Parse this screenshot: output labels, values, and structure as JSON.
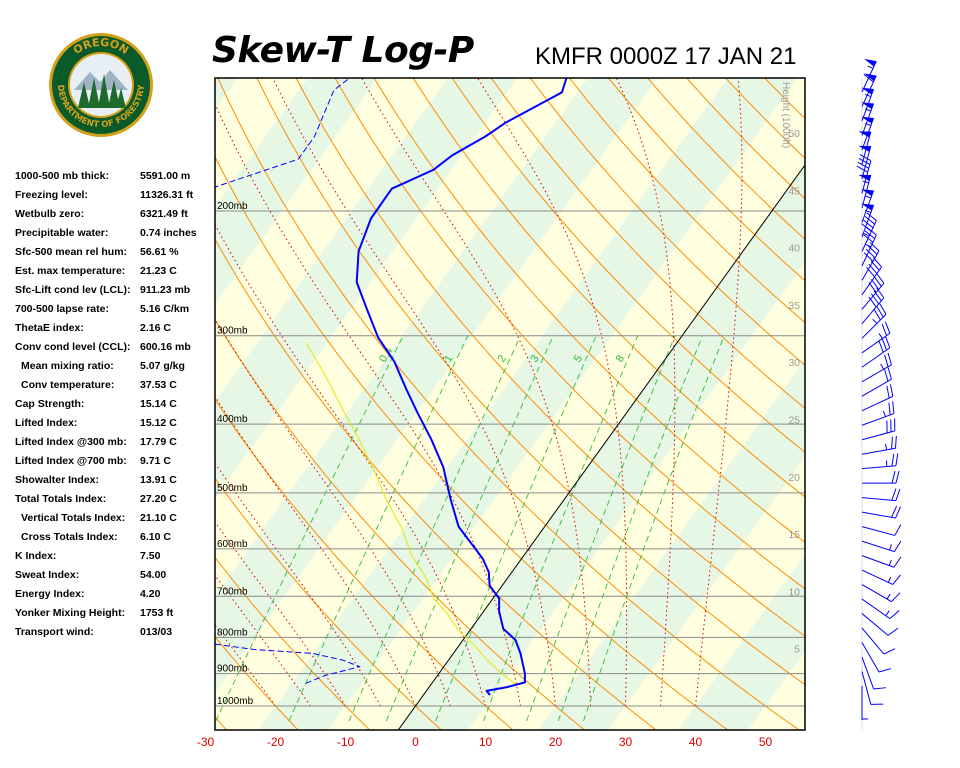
{
  "header": {
    "title": "Skew-T Log-P",
    "station_time": "KMFR 0000Z 17 JAN 21"
  },
  "logo": {
    "top_text": "OREGON",
    "bottom_text": "DEPARTMENT OF FORESTRY",
    "colors": {
      "ring": "#0a5a2a",
      "border": "#d4a017",
      "inner": "#e8f0f5",
      "trees": "#1f6b2e"
    }
  },
  "indices": [
    {
      "label": "1000-500 mb thick:",
      "value": "5591.00 m",
      "sub": false
    },
    {
      "label": "Freezing level:",
      "value": "11326.31 ft",
      "sub": false
    },
    {
      "label": "Wetbulb zero:",
      "value": "6321.49 ft",
      "sub": false
    },
    {
      "label": "Precipitable water:",
      "value": "0.74 inches",
      "sub": false
    },
    {
      "label": "Sfc-500 mean rel hum:",
      "value": "56.61 %",
      "sub": false
    },
    {
      "label": "Est. max temperature:",
      "value": "21.23 C",
      "sub": false
    },
    {
      "label": "Sfc-Lift cond lev (LCL):",
      "value": "911.23 mb",
      "sub": false
    },
    {
      "label": "700-500 lapse rate:",
      "value": "5.16 C/km",
      "sub": false
    },
    {
      "label": "ThetaE index:",
      "value": "2.16 C",
      "sub": false
    },
    {
      "label": "Conv cond level (CCL):",
      "value": "600.16 mb",
      "sub": false
    },
    {
      "label": "Mean mixing ratio:",
      "value": "5.07 g/kg",
      "sub": true
    },
    {
      "label": "Conv temperature:",
      "value": "37.53 C",
      "sub": true
    },
    {
      "label": "Cap Strength:",
      "value": "15.14 C",
      "sub": false
    },
    {
      "label": "Lifted Index:",
      "value": "15.12 C",
      "sub": false
    },
    {
      "label": "Lifted Index @300 mb:",
      "value": "17.79 C",
      "sub": false
    },
    {
      "label": "Lifted Index @700 mb:",
      "value": "9.71 C",
      "sub": false
    },
    {
      "label": "Showalter Index:",
      "value": "13.91 C",
      "sub": false
    },
    {
      "label": "Total Totals Index:",
      "value": "27.20 C",
      "sub": false
    },
    {
      "label": "Vertical Totals Index:",
      "value": "21.10 C",
      "sub": true
    },
    {
      "label": "Cross Totals Index:",
      "value": "6.10 C",
      "sub": true
    },
    {
      "label": "K Index:",
      "value": "7.50",
      "sub": false
    },
    {
      "label": "Sweat Index:",
      "value": "54.00",
      "sub": false
    },
    {
      "label": "Energy Index:",
      "value": "4.20",
      "sub": false
    },
    {
      "label": "Yonker Mixing Height:",
      "value": "1753 ft",
      "sub": false
    },
    {
      "label": "Transport wind:",
      "value": "013/03",
      "sub": false
    }
  ],
  "chart_data": {
    "type": "line",
    "xlabel": "",
    "ylabel": "",
    "x_ticks": [
      -30,
      -20,
      -10,
      0,
      10,
      20,
      30,
      40,
      50
    ],
    "x_tick_labels": [
      "-30",
      "-20",
      "-10",
      "0",
      "10",
      "20",
      "30",
      "40",
      "50"
    ],
    "pressure_levels": [
      200,
      300,
      400,
      500,
      600,
      700,
      800,
      900,
      1000
    ],
    "pressure_labels": [
      "200mb",
      "300mb",
      "400mb",
      "500mb",
      "600mb",
      "700mb",
      "800mb",
      "900mb",
      "1000mb"
    ],
    "height_axis_label": "Height (1000ft)",
    "height_ticks": [
      5,
      10,
      15,
      20,
      25,
      30,
      35,
      40,
      45,
      50
    ],
    "mixing_ratio_labels": [
      "0.4",
      "1",
      "2",
      "3",
      "5",
      "8"
    ],
    "series": [
      {
        "name": "Temperature",
        "points": [
          [
            9.5,
            965
          ],
          [
            8.6,
            952
          ],
          [
            11.2,
            940
          ],
          [
            13.2,
            926
          ],
          [
            12.3,
            900
          ],
          [
            10.9,
            870
          ],
          [
            9.6,
            843
          ],
          [
            7.5,
            807
          ],
          [
            4.6,
            778
          ],
          [
            2.2,
            735
          ],
          [
            0.9,
            705
          ],
          [
            -1.8,
            676
          ],
          [
            -3.3,
            647
          ],
          [
            -5.5,
            620
          ],
          [
            -7.7,
            599
          ],
          [
            -9.8,
            580
          ],
          [
            -12.3,
            558
          ],
          [
            -16.3,
            510
          ],
          [
            -20.6,
            460
          ],
          [
            -25.2,
            420
          ],
          [
            -29.8,
            386
          ],
          [
            -33.9,
            357
          ],
          [
            -38.5,
            326
          ],
          [
            -43.2,
            302
          ],
          [
            -47.8,
            275
          ],
          [
            -52.0,
            252
          ],
          [
            -54.9,
            228
          ],
          [
            -56.5,
            205
          ],
          [
            -56.6,
            186
          ],
          [
            -52.6,
            175
          ],
          [
            -51.4,
            167
          ],
          [
            -48.6,
            157
          ],
          [
            -47.1,
            150
          ],
          [
            -42.2,
            136
          ],
          [
            -43.0,
            130
          ],
          [
            -38.8,
            118
          ],
          [
            -36.3,
            114
          ]
        ],
        "color": "#0000ff",
        "style": "solid"
      },
      {
        "name": "Dewpoint",
        "points": [
          [
            -18,
            929
          ],
          [
            -16,
            905
          ],
          [
            -12,
            880
          ],
          [
            -15,
            862
          ],
          [
            -20,
            843
          ],
          [
            -29,
            832
          ],
          [
            -34,
            820
          ],
          [
            -39,
            808
          ],
          [
            -41,
            805
          ],
          [
            -41,
            780
          ],
          [
            -43,
            760
          ],
          [
            -38,
            744
          ],
          [
            -39,
            735
          ],
          [
            -41,
            715
          ],
          [
            -41,
            705
          ],
          [
            -45,
            685
          ],
          [
            -44,
            660
          ],
          [
            -46,
            640
          ],
          [
            -49,
            610
          ],
          [
            -48,
            585
          ],
          [
            -54,
            567
          ],
          [
            -56,
            540
          ],
          [
            -55,
            505
          ],
          [
            -57,
            490
          ],
          [
            -62,
            455
          ],
          [
            -64,
            420
          ],
          [
            -63,
            405
          ],
          [
            -62,
            380
          ],
          [
            -70,
            355
          ],
          [
            -75,
            325
          ],
          [
            -81,
            295
          ],
          [
            -78,
            268
          ],
          [
            -77,
            250
          ],
          [
            -79,
            230
          ],
          [
            -81,
            204
          ],
          [
            -82,
            185
          ],
          [
            -73,
            169
          ],
          [
            -73,
            162
          ],
          [
            -73,
            157
          ],
          [
            -75,
            135
          ],
          [
            -72,
            120
          ],
          [
            -71,
            114
          ]
        ],
        "color": "#0000ff",
        "style": "dashed"
      },
      {
        "name": "Parcel",
        "points": [
          [
            11.9,
            930
          ],
          [
            9.0,
            900
          ],
          [
            5.4,
            860
          ],
          [
            2.1,
            820
          ],
          [
            -1.8,
            780
          ],
          [
            -5.0,
            740
          ],
          [
            -8.4,
            706
          ],
          [
            -11.6,
            660
          ],
          [
            -16.3,
            610
          ],
          [
            -20.3,
            560
          ],
          [
            -25.0,
            515
          ],
          [
            -29.6,
            470
          ],
          [
            -35.5,
            420
          ],
          [
            -41.1,
            380
          ],
          [
            -47.1,
            340
          ],
          [
            -53.0,
            307
          ]
        ],
        "color": "#e6e600",
        "style": "solid"
      }
    ]
  },
  "wind_profile": {
    "barbs": [
      [
        180,
        5
      ],
      [
        165,
        10
      ],
      [
        160,
        10
      ],
      [
        150,
        10
      ],
      [
        140,
        10
      ],
      [
        130,
        10
      ],
      [
        125,
        15
      ],
      [
        120,
        15
      ],
      [
        115,
        15
      ],
      [
        110,
        15
      ],
      [
        108,
        15
      ],
      [
        105,
        10
      ],
      [
        100,
        20
      ],
      [
        95,
        20
      ],
      [
        90,
        20
      ],
      [
        85,
        25
      ],
      [
        80,
        25
      ],
      [
        75,
        30
      ],
      [
        70,
        25
      ],
      [
        65,
        20
      ],
      [
        60,
        20
      ],
      [
        60,
        25
      ],
      [
        55,
        30
      ],
      [
        55,
        25
      ],
      [
        45,
        35
      ],
      [
        40,
        40
      ],
      [
        40,
        40
      ],
      [
        35,
        40
      ],
      [
        30,
        40
      ],
      [
        25,
        35
      ],
      [
        25,
        45
      ],
      [
        20,
        55
      ],
      [
        20,
        55
      ],
      [
        15,
        55
      ],
      [
        15,
        45
      ],
      [
        15,
        50
      ],
      [
        15,
        50
      ],
      [
        20,
        55
      ],
      [
        20,
        55
      ],
      [
        20,
        55
      ],
      [
        25,
        60
      ],
      [
        25,
        55
      ]
    ],
    "color": "#0000ff"
  }
}
